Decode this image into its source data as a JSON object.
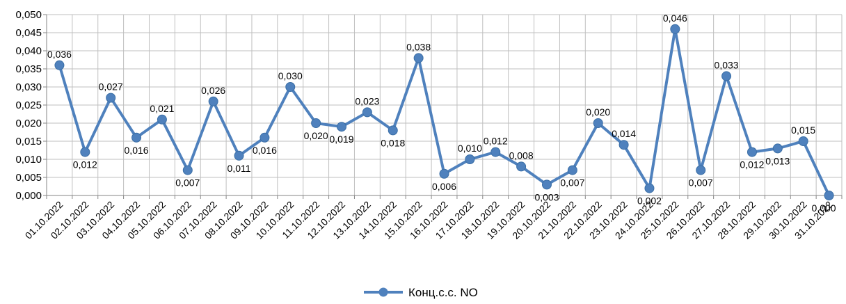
{
  "chart_data": {
    "type": "line",
    "categories": [
      "01.10.2022",
      "02.10.2022",
      "03.10.2022",
      "04.10.2022",
      "05.10.2022",
      "06.10.2022",
      "07.10.2022",
      "08.10.2022",
      "09.10.2022",
      "10.10.2022",
      "11.10.2022",
      "12.10.2022",
      "13.10.2022",
      "14.10.2022",
      "15.10.2022",
      "16.10.2022",
      "17.10.2022",
      "18.10.2022",
      "19.10.2022",
      "20.10.2022",
      "21.10.2022",
      "22.10.2022",
      "23.10.2022",
      "24.10.2022",
      "25.10.2022",
      "26.10.2022",
      "27.10.2022",
      "28.10.2022",
      "29.10.2022",
      "30.10.2022",
      "31.10.2022"
    ],
    "series": [
      {
        "name": "Конц.с.с. NO",
        "color": "#4F81BD",
        "values": [
          0.036,
          0.012,
          0.027,
          0.016,
          0.021,
          0.007,
          0.026,
          0.011,
          0.016,
          0.03,
          0.02,
          0.019,
          0.023,
          0.018,
          0.038,
          0.006,
          0.01,
          0.012,
          0.008,
          0.003,
          0.007,
          0.02,
          0.014,
          0.002,
          0.046,
          0.007,
          0.033,
          0.012,
          0.013,
          0.015,
          0.0
        ],
        "data_labels": [
          "0,036",
          "0,012",
          "0,027",
          "0,016",
          "0,021",
          "0,007",
          "0,026",
          "0,011",
          "0,016",
          "0,030",
          "0,020",
          "0,019",
          "0,023",
          "0,018",
          "0,038",
          "0,006",
          "0,010",
          "0,012",
          "0,008",
          "0,003",
          "0,007",
          "0,020",
          "0,014",
          "0,002",
          "0,046",
          "0,007",
          "0,033",
          "0,012",
          "0,013",
          "0,015",
          "0,000"
        ]
      }
    ],
    "ylim": [
      0,
      0.05
    ],
    "y_ticks": [
      "0,000",
      "0,005",
      "0,010",
      "0,015",
      "0,020",
      "0,025",
      "0,030",
      "0,035",
      "0,040",
      "0,045",
      "0,050"
    ],
    "grid": true,
    "legend": "bottom",
    "title": "",
    "xlabel": "",
    "ylabel": ""
  }
}
